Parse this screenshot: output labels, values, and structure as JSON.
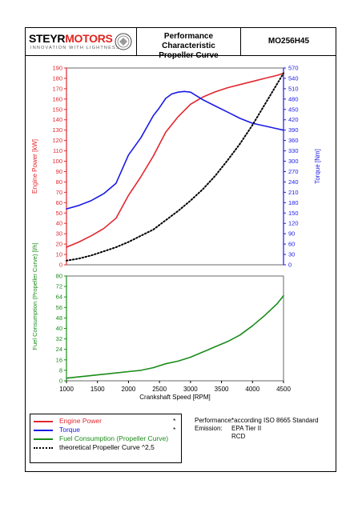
{
  "header": {
    "logo_steyr": "STEYR",
    "logo_motors": "MOTORS",
    "logo_tagline": "INNOVATION WITH LIGHTNESS",
    "title_line1": "Performance Characteristic",
    "title_line2": "Propeller Curve",
    "model": "MO256H45"
  },
  "colors": {
    "power": "#e3262e",
    "torque": "#1a1ae6",
    "fuel": "#1a8c1a",
    "propeller": "#000000"
  },
  "chart_data": {
    "type": "line",
    "xlabel": "Crankshaft Speed [RPM]",
    "xlim": [
      1000,
      4500
    ],
    "xticks": [
      1000,
      1500,
      2000,
      2500,
      3000,
      3500,
      4000,
      4500
    ],
    "upper": {
      "ylabel_left": "Engine Power [kW]",
      "ylabel_right": "Torque [Nm]",
      "ylim_left": [
        0,
        190
      ],
      "ylim_right": [
        0,
        570
      ],
      "yticks_left": [
        0,
        10,
        20,
        30,
        40,
        50,
        60,
        70,
        80,
        90,
        100,
        110,
        120,
        130,
        140,
        150,
        160,
        170,
        180,
        190
      ],
      "yticks_right": [
        0,
        30,
        60,
        90,
        120,
        150,
        180,
        210,
        240,
        270,
        300,
        330,
        360,
        390,
        420,
        450,
        480,
        510,
        540,
        570
      ],
      "series": [
        {
          "name": "Engine Power",
          "axis": "left",
          "style": "solid",
          "x": [
            1000,
            1200,
            1400,
            1600,
            1800,
            2000,
            2200,
            2400,
            2600,
            2800,
            3000,
            3200,
            3400,
            3600,
            3800,
            4000,
            4200,
            4400,
            4500
          ],
          "y": [
            17,
            22,
            28,
            35,
            45,
            67,
            85,
            105,
            128,
            143,
            155,
            162,
            167,
            171,
            174,
            177,
            180,
            183,
            185
          ]
        },
        {
          "name": "Torque",
          "axis": "right",
          "style": "solid",
          "x": [
            1000,
            1200,
            1400,
            1600,
            1800,
            2000,
            2200,
            2400,
            2500,
            2600,
            2700,
            2800,
            2900,
            3000,
            3200,
            3400,
            3600,
            3800,
            4000,
            4200,
            4400,
            4500
          ],
          "y": [
            162,
            172,
            186,
            206,
            236,
            318,
            368,
            432,
            455,
            482,
            495,
            500,
            502,
            500,
            478,
            460,
            442,
            424,
            410,
            402,
            394,
            390
          ]
        },
        {
          "name": "theoretical Propeller Curve ^2,5",
          "axis": "left",
          "style": "dotted",
          "x": [
            1000,
            1200,
            1400,
            1600,
            1800,
            2000,
            2200,
            2400,
            2600,
            2800,
            3000,
            3200,
            3400,
            3600,
            3800,
            4000,
            4200,
            4400,
            4500
          ],
          "y": [
            4,
            6,
            9,
            13,
            17,
            22,
            28,
            34,
            43,
            52,
            62,
            73,
            86,
            101,
            117,
            135,
            155,
            175,
            185
          ]
        }
      ]
    },
    "lower": {
      "ylabel_left": "Fuel Consumption (Propeller Curve) [l/h]",
      "ylim_left": [
        0,
        80
      ],
      "yticks_left": [
        0,
        8,
        16,
        24,
        32,
        40,
        48,
        56,
        64,
        72,
        80
      ],
      "series": [
        {
          "name": "Fuel Consumption (Propeller Curve)",
          "axis": "left",
          "style": "solid",
          "x": [
            1000,
            1200,
            1400,
            1600,
            1800,
            2000,
            2200,
            2400,
            2600,
            2800,
            3000,
            3200,
            3400,
            3600,
            3800,
            4000,
            4200,
            4400,
            4500
          ],
          "y": [
            2,
            3,
            4,
            5,
            6,
            7,
            8,
            10,
            13,
            15,
            18,
            22,
            26,
            30,
            35,
            42,
            50,
            59,
            65
          ]
        }
      ]
    }
  },
  "legend": [
    {
      "label": "Engine Power",
      "color_key": "power",
      "style": "solid",
      "star": "*"
    },
    {
      "label": "Torque",
      "color_key": "torque",
      "style": "solid",
      "star": "*"
    },
    {
      "label": "Fuel Consumption (Propeller Curve)",
      "color_key": "fuel",
      "style": "solid",
      "star": ""
    },
    {
      "label": "theoretical Propeller Curve ^2,5",
      "color_key": "propeller",
      "style": "dotted",
      "star": ""
    }
  ],
  "info": {
    "performance_label": "Performance:",
    "performance_value": "*according ISO 8665 Standard",
    "emission_label": "Emission:",
    "emission_value1": "EPA Tier II",
    "emission_value2": "RCD"
  }
}
